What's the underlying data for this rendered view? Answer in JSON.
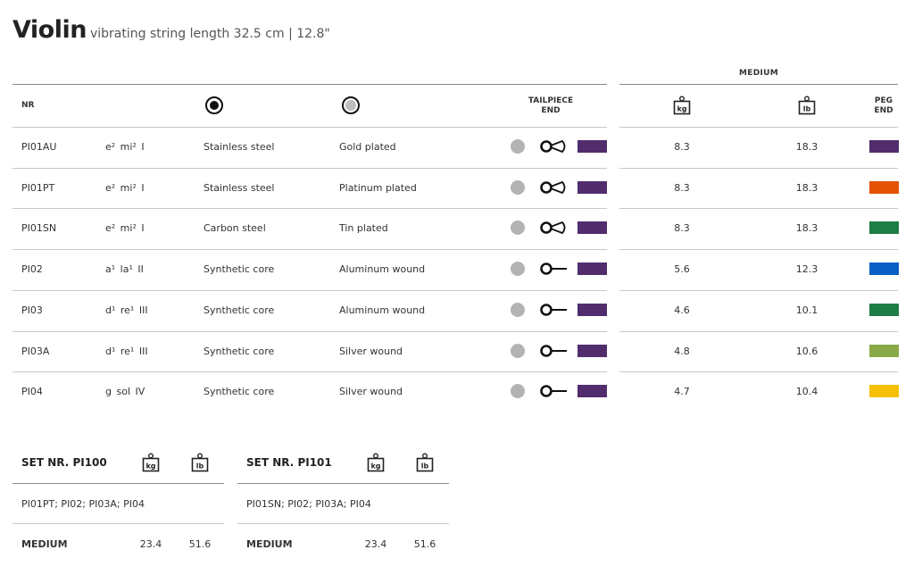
{
  "header": {
    "title": "Violin",
    "subtitle": "vibrating string length 32.5 cm | 12.8\""
  },
  "table": {
    "group_header": "MEDIUM",
    "columns": {
      "nr": "NR",
      "tailpiece_end": [
        "TAILPIECE",
        "END"
      ],
      "kg": "kg",
      "lb": "lb",
      "peg_end": [
        "PEG",
        "END"
      ]
    },
    "rows": [
      {
        "nr": "PI01AU",
        "note": "e²  mi²  I",
        "core": "Stainless steel",
        "winding": "Gold plated",
        "end": "loop",
        "tail_color": "#512d6d",
        "kg": "8.3",
        "lb": "18.3",
        "peg_color": "#512d6d"
      },
      {
        "nr": "PI01PT",
        "note": "e²  mi²  I",
        "core": "Stainless steel",
        "winding": "Platinum plated",
        "end": "loop",
        "tail_color": "#512d6d",
        "kg": "8.3",
        "lb": "18.3",
        "peg_color": "#e35205"
      },
      {
        "nr": "PI01SN",
        "note": "e²  mi²  I",
        "core": "Carbon steel",
        "winding": "Tin plated",
        "end": "loop",
        "tail_color": "#512d6d",
        "kg": "8.3",
        "lb": "18.3",
        "peg_color": "#1e7d46"
      },
      {
        "nr": "PI02",
        "note": "a¹  la¹  II",
        "core": "Synthetic core",
        "winding": "Aluminum wound",
        "end": "ball",
        "tail_color": "#512d6d",
        "kg": "5.6",
        "lb": "12.3",
        "peg_color": "#0a5fc4"
      },
      {
        "nr": "PI03",
        "note": "d¹  re¹  III",
        "core": "Synthetic core",
        "winding": "Aluminum wound",
        "end": "ball",
        "tail_color": "#512d6d",
        "kg": "4.6",
        "lb": "10.1",
        "peg_color": "#1e7d46"
      },
      {
        "nr": "PI03A",
        "note": "d¹  re¹  III",
        "core": "Synthetic core",
        "winding": "Silver wound",
        "end": "ball",
        "tail_color": "#512d6d",
        "kg": "4.8",
        "lb": "10.6",
        "peg_color": "#8aaa4a"
      },
      {
        "nr": "PI04",
        "note": "g  sol  IV",
        "core": "Synthetic core",
        "winding": "Silver wound",
        "end": "ball",
        "tail_color": "#512d6d",
        "kg": "4.7",
        "lb": "10.4",
        "peg_color": "#f5c000"
      }
    ]
  },
  "sets": [
    {
      "title": "SET NR. PI100",
      "kg_label": "kg",
      "lb_label": "lb",
      "contents": "PI01PT; PI02; PI03A; PI04",
      "tension_label": "MEDIUM",
      "kg": "23.4",
      "lb": "51.6"
    },
    {
      "title": "SET NR. PI101",
      "kg_label": "kg",
      "lb_label": "lb",
      "contents": "PI01SN; PI02; PI03A; PI04",
      "tension_label": "MEDIUM",
      "kg": "23.4",
      "lb": "51.6"
    }
  ],
  "icons": {
    "core_material": "filled-circle-icon",
    "winding_material": "ring-circle-icon",
    "weight": "weight-icon",
    "loop_end": "loop-end-icon",
    "ball_end": "ball-end-icon"
  }
}
